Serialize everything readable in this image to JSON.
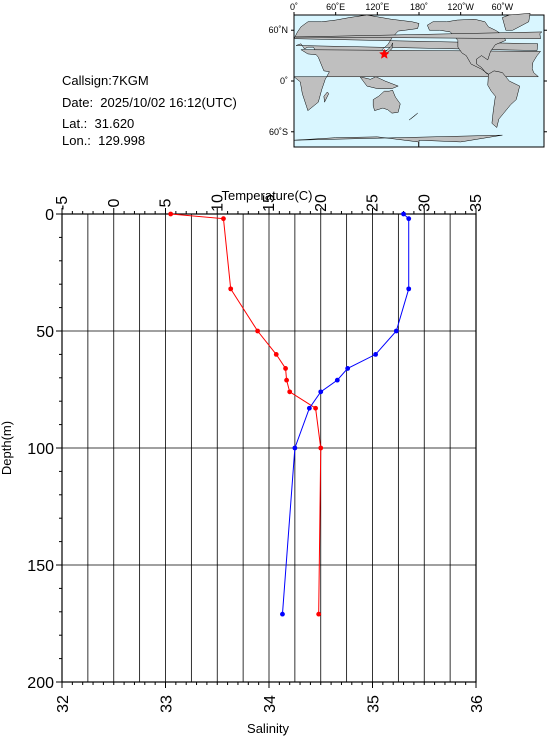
{
  "info": {
    "callsign": "Callsign:7KGM",
    "date": "Date:  2025/10/02 16:12(UTC)",
    "lat": "Lat.:  31.620",
    "lon": "Lon.:  129.998"
  },
  "map": {
    "top_labels": [
      "0˚",
      "60˚E",
      "120˚E",
      "180˚",
      "120˚W",
      "60˚W"
    ],
    "left_labels": [
      "60˚N",
      "0˚",
      "60˚S"
    ],
    "ocean_color": "#d9f6ff",
    "land_color": "#bfbfbf",
    "station_marker_color": "#ff0000",
    "station": {
      "lon": 129.998,
      "lat": 31.62
    }
  },
  "chart_data": {
    "type": "line",
    "ylabel": "Depth(m)",
    "y_ticks": [
      0,
      50,
      100,
      150,
      200
    ],
    "ylim": [
      0,
      200
    ],
    "y_inverted": true,
    "temperature_axis": {
      "label": "Temperature(C)",
      "position": "top",
      "ticks": [
        -5,
        0,
        5,
        10,
        15,
        20,
        25,
        30,
        35
      ],
      "lim": [
        -5,
        35
      ]
    },
    "salinity_axis": {
      "label": "Salinity",
      "position": "bottom",
      "ticks": [
        32,
        33,
        34,
        35,
        36
      ],
      "lim": [
        32,
        36
      ]
    },
    "grid": true,
    "series": [
      {
        "axis": "temperature",
        "color": "#ff0000",
        "points": [
          {
            "depth": 0,
            "value": 5.5
          },
          {
            "depth": 2,
            "value": 10.6
          },
          {
            "depth": 32,
            "value": 11.3
          },
          {
            "depth": 50,
            "value": 13.9
          },
          {
            "depth": 60,
            "value": 15.7
          },
          {
            "depth": 66,
            "value": 16.6
          },
          {
            "depth": 71,
            "value": 16.7
          },
          {
            "depth": 76,
            "value": 17.0
          },
          {
            "depth": 83,
            "value": 19.5
          },
          {
            "depth": 100,
            "value": 20.0
          },
          {
            "depth": 171,
            "value": 19.8
          }
        ]
      },
      {
        "axis": "salinity",
        "color": "#0000ff",
        "points": [
          {
            "depth": 0,
            "value": 35.3
          },
          {
            "depth": 2,
            "value": 35.35
          },
          {
            "depth": 32,
            "value": 35.35
          },
          {
            "depth": 50,
            "value": 35.23
          },
          {
            "depth": 60,
            "value": 35.03
          },
          {
            "depth": 66,
            "value": 34.76
          },
          {
            "depth": 71,
            "value": 34.66
          },
          {
            "depth": 76,
            "value": 34.5
          },
          {
            "depth": 83,
            "value": 34.39
          },
          {
            "depth": 100,
            "value": 34.25
          },
          {
            "depth": 171,
            "value": 34.13
          }
        ]
      }
    ]
  }
}
